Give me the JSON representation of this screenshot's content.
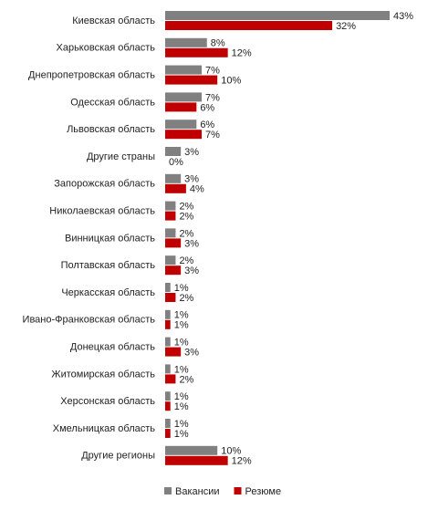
{
  "chart_data": {
    "type": "bar",
    "orientation": "horizontal",
    "categories": [
      "Киевская область",
      "Харьковская область",
      "Днепропетровская область",
      "Одесская область",
      "Львовская область",
      "Другие страны",
      "Запорожская область",
      "Николаевская область",
      "Винницкая область",
      "Полтавская область",
      "Черкасская область",
      "Ивано-Франковская область",
      "Донецкая область",
      "Житомирская область",
      "Херсонская область",
      "Хмельницкая область",
      "Другие регионы"
    ],
    "series": [
      {
        "name": "Вакансии",
        "color": "#808080",
        "values": [
          43,
          8,
          7,
          7,
          6,
          3,
          3,
          2,
          2,
          2,
          1,
          1,
          1,
          1,
          1,
          1,
          10
        ],
        "value_labels": [
          "43%",
          "8%",
          "7%",
          "7%",
          "6%",
          "3%",
          "3%",
          "2%",
          "2%",
          "2%",
          "1%",
          "1%",
          "1%",
          "1%",
          "1%",
          "1%",
          "10%"
        ]
      },
      {
        "name": "Резюме",
        "color": "#c00000",
        "values": [
          32,
          12,
          10,
          6,
          7,
          0,
          4,
          2,
          3,
          3,
          2,
          1,
          3,
          2,
          1,
          1,
          12
        ],
        "value_labels": [
          "32%",
          "12%",
          "10%",
          "6%",
          "7%",
          "0%",
          "4%",
          "2%",
          "3%",
          "3%",
          "2%",
          "1%",
          "3%",
          "2%",
          "1%",
          "1%",
          "12%"
        ]
      }
    ],
    "legend": "bottom"
  }
}
